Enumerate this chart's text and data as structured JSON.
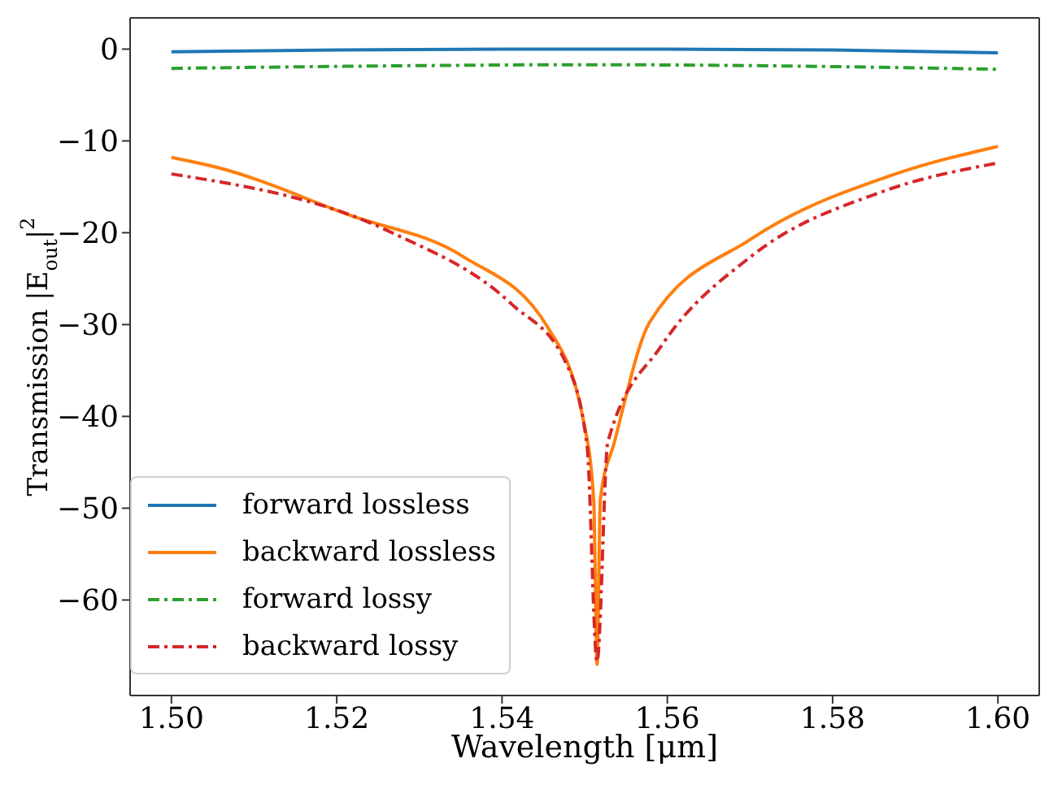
{
  "chart_data": {
    "type": "line",
    "xlabel": "Wavelength [μm]",
    "ylabel": "Transmission |E$_{out}$|$^{2}$",
    "xlim": [
      1.495,
      1.605
    ],
    "xticks": [
      {
        "value": 1.5,
        "label": "1.50"
      },
      {
        "value": 1.52,
        "label": "1.52"
      },
      {
        "value": 1.54,
        "label": "1.54"
      },
      {
        "value": 1.56,
        "label": "1.56"
      },
      {
        "value": 1.58,
        "label": "1.58"
      },
      {
        "value": 1.6,
        "label": "1.60"
      }
    ],
    "ylim": [
      -70.4,
      3.4
    ],
    "yticks": [
      -60,
      -50,
      -40,
      -30,
      -20,
      -10,
      0
    ],
    "grid": false,
    "legend": "bottom left",
    "marker": "none",
    "series": [
      {
        "name": "forward lossless",
        "color": "#1f77b4",
        "line_style": "solid",
        "x": [
          1.5,
          1.52,
          1.54,
          1.55,
          1.56,
          1.58,
          1.6
        ],
        "values": [
          -0.3,
          -0.1,
          0,
          0,
          0,
          -0.1,
          -0.4
        ]
      },
      {
        "name": "backward lossless",
        "color": "#ff7f0e",
        "line_style": "solid",
        "x": [
          1.5,
          1.5056,
          1.5216,
          1.5353,
          1.5456,
          1.5499,
          1.5511,
          1.5515,
          1.5519,
          1.5536,
          1.5579,
          1.5701,
          1.5876,
          1.6
        ],
        "values": [
          -11.8,
          -12.9,
          -18.1,
          -22.6,
          -30.4,
          -40.7,
          -49.2,
          -67,
          -49,
          -42.8,
          -29.7,
          -20.7,
          -13.6,
          -10.6
        ]
      },
      {
        "name": "forward lossy",
        "color": "#2ca02c",
        "line_style": "dashed",
        "x": [
          1.5,
          1.53,
          1.55,
          1.57,
          1.6
        ],
        "values": [
          -2.1,
          -1.8,
          -1.7,
          -1.8,
          -2.2
        ]
      },
      {
        "name": "backward lossy",
        "color": "#d62728",
        "line_style": "dashed",
        "x": [
          1.5,
          1.5267,
          1.5412,
          1.5478,
          1.5503,
          1.5515,
          1.5528,
          1.5593,
          1.5701,
          1.5861,
          1.6
        ],
        "values": [
          -13.6,
          -20,
          -27.8,
          -34.3,
          -43.3,
          -66.7,
          -42.8,
          -32.3,
          -22.6,
          -15.5,
          -12.4
        ]
      }
    ]
  }
}
